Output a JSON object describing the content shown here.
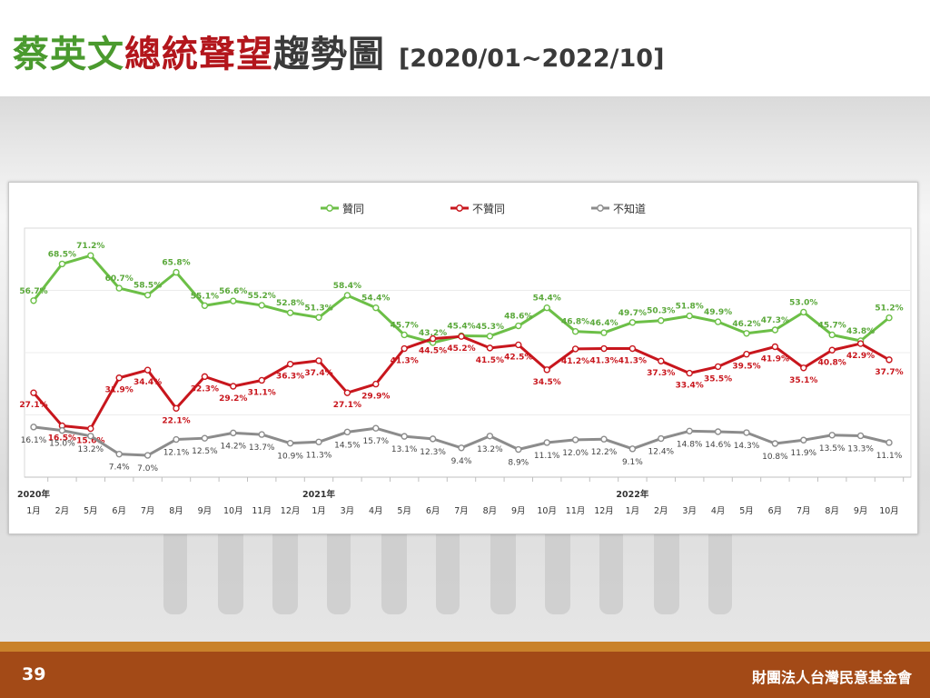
{
  "title": {
    "part1": "蔡英文",
    "part2": "總統聲望",
    "part3": "趨勢圖",
    "range": "[2020/01~2022/10]"
  },
  "footer": {
    "page_number": "39",
    "organization": "財團法人台灣民意基金會"
  },
  "colors": {
    "approve": "#6cbf47",
    "disapprove": "#c8161d",
    "unknown": "#8c8c8c",
    "title_green": "#4a9a2e",
    "title_red": "#b3161c",
    "footer_bg": "#a34a17",
    "footer_stripe": "#c9822b"
  },
  "chart_data": {
    "type": "line",
    "legend_position": "top",
    "grid": true,
    "ylim": [
      0,
      80
    ],
    "year_labels": [
      {
        "index": 0,
        "label": "2020年"
      },
      {
        "index": 10,
        "label": "2021年"
      },
      {
        "index": 21,
        "label": "2022年"
      }
    ],
    "categories": [
      "1月",
      "2月",
      "5月",
      "6月",
      "7月",
      "8月",
      "9月",
      "10月",
      "11月",
      "12月",
      "1月",
      "3月",
      "4月",
      "5月",
      "6月",
      "7月",
      "8月",
      "9月",
      "10月",
      "11月",
      "12月",
      "1月",
      "2月",
      "3月",
      "4月",
      "5月",
      "6月",
      "7月",
      "8月",
      "9月",
      "10月"
    ],
    "series": [
      {
        "name": "贊同",
        "color": "#6cbf47",
        "values": [
          56.7,
          68.5,
          71.2,
          60.7,
          58.5,
          65.8,
          55.1,
          56.6,
          55.2,
          52.8,
          51.3,
          58.4,
          54.4,
          45.7,
          43.2,
          45.4,
          45.3,
          48.6,
          54.4,
          46.8,
          46.4,
          49.7,
          50.3,
          51.8,
          49.9,
          46.2,
          47.3,
          53.0,
          45.7,
          43.8,
          51.2
        ],
        "labels": [
          "56.7%",
          "68.5%",
          "71.2%",
          "60.7%",
          "58.5%",
          "65.8%",
          "55.1%",
          "56.6%",
          "55.2%",
          "52.8%",
          "51.3%",
          "58.4%",
          "54.4%",
          "45.7%",
          "43.2%",
          "45.4%",
          "45.3%",
          "48.6%",
          "54.4%",
          "46.8%",
          "46.4%",
          "49.7%",
          "50.3%",
          "51.8%",
          "49.9%",
          "46.2%",
          "47.3%",
          "53.0%",
          "45.7%",
          "43.8%",
          "51.2%"
        ]
      },
      {
        "name": "不贊同",
        "color": "#c8161d",
        "values": [
          27.1,
          16.5,
          15.6,
          31.9,
          34.4,
          22.1,
          32.3,
          29.2,
          31.1,
          36.3,
          37.4,
          27.1,
          29.9,
          41.3,
          44.5,
          45.2,
          41.5,
          42.5,
          34.5,
          41.2,
          41.3,
          41.3,
          37.3,
          33.4,
          35.5,
          39.5,
          41.9,
          35.1,
          40.8,
          42.9,
          37.7
        ],
        "labels": [
          "27.1%",
          "16.5%",
          "15.6%",
          "31.9%",
          "34.4%",
          "22.1%",
          "32.3%",
          "29.2%",
          "31.1%",
          "36.3%",
          "37.4%",
          "27.1%",
          "29.9%",
          "41.3%",
          "44.5%",
          "45.2%",
          "41.5%",
          "42.5%",
          "34.5%",
          "41.2%",
          "41.3%",
          "41.3%",
          "37.3%",
          "33.4%",
          "35.5%",
          "39.5%",
          "41.9%",
          "35.1%",
          "40.8%",
          "42.9%",
          "37.7%"
        ]
      },
      {
        "name": "不知道",
        "color": "#8c8c8c",
        "values": [
          16.1,
          15.0,
          13.2,
          7.4,
          7.0,
          12.1,
          12.5,
          14.2,
          13.7,
          10.9,
          11.3,
          14.5,
          15.7,
          13.1,
          12.3,
          9.4,
          13.2,
          8.9,
          11.1,
          12.0,
          12.2,
          9.1,
          12.4,
          14.8,
          14.6,
          14.3,
          10.8,
          11.9,
          13.5,
          13.3,
          11.1
        ],
        "labels": [
          "16.1%",
          "15.0%",
          "13.2%",
          "7.4%",
          "7.0%",
          "12.1%",
          "12.5%",
          "14.2%",
          "13.7%",
          "10.9%",
          "11.3%",
          "14.5%",
          "15.7%",
          "13.1%",
          "12.3%",
          "9.4%",
          "13.2%",
          "8.9%",
          "11.1%",
          "12.0%",
          "12.2%",
          "9.1%",
          "12.4%",
          "14.8%",
          "14.6%",
          "14.3%",
          "10.8%",
          "11.9%",
          "13.5%",
          "13.3%",
          "11.1%"
        ]
      }
    ]
  }
}
